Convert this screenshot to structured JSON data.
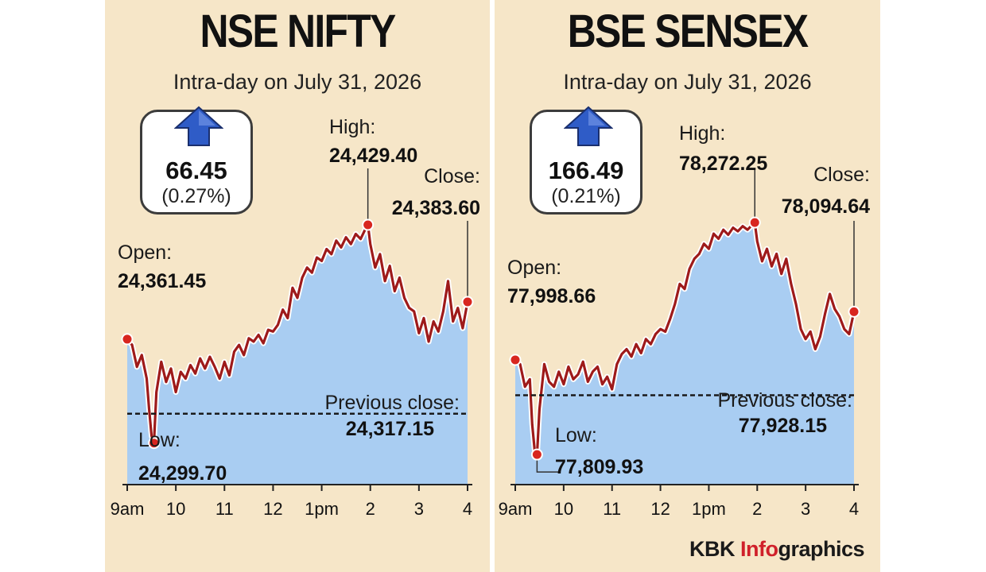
{
  "colors": {
    "panel_bg": "#f6e6c8",
    "area_fill": "#a9cdf2",
    "line": "#9e1a1a",
    "marker": "#d8261f",
    "arrow": "#2f5cc7",
    "accent": "#d0202a"
  },
  "credit": {
    "brand": "KBK ",
    "accent": "Info",
    "rest": "graphics"
  },
  "chart_data": [
    {
      "type": "area",
      "title": "NSE NIFTY",
      "subtitle": "Intra-day on July 31, 2026",
      "change": {
        "value": "66.45",
        "percent": "(0.27%)",
        "direction": "up"
      },
      "x_ticks": [
        "9am",
        "10",
        "11",
        "12",
        "1pm",
        "2",
        "3",
        "4"
      ],
      "x_range_hours": [
        9,
        16
      ],
      "y_range": [
        24275,
        24445
      ],
      "previous_close": {
        "label": "Previous close:",
        "value": "24,317.15",
        "y": 24317.15
      },
      "open": {
        "label": "Open:",
        "value": "24,361.45",
        "x": 9.0,
        "y": 24361.45
      },
      "low": {
        "label": "Low:",
        "value": "24,299.70",
        "x": 9.55,
        "y": 24299.7
      },
      "high": {
        "label": "High:",
        "value": "24,429.40",
        "x": 13.95,
        "y": 24429.4
      },
      "close": {
        "label": "Close:",
        "value": "24,383.60",
        "x": 16.0,
        "y": 24383.6
      },
      "series": [
        {
          "x": [
            9.0,
            9.1,
            9.2,
            9.3,
            9.4,
            9.45,
            9.5,
            9.55,
            9.6,
            9.7,
            9.8,
            9.9,
            10.0,
            10.1,
            10.2,
            10.3,
            10.4,
            10.5,
            10.6,
            10.7,
            10.8,
            10.9,
            11.0,
            11.1,
            11.2,
            11.3,
            11.4,
            11.5,
            11.6,
            11.7,
            11.8,
            11.9,
            12.0,
            12.1,
            12.2,
            12.3,
            12.4,
            12.5,
            12.6,
            12.7,
            12.8,
            12.9,
            13.0,
            13.1,
            13.2,
            13.3,
            13.4,
            13.5,
            13.6,
            13.7,
            13.8,
            13.9,
            13.95,
            14.0,
            14.1,
            14.2,
            14.3,
            14.4,
            14.5,
            14.6,
            14.7,
            14.8,
            14.9,
            15.0,
            15.1,
            15.2,
            15.3,
            15.4,
            15.5,
            15.6,
            15.7,
            15.8,
            15.9,
            16.0
          ],
          "values": [
            24361.45,
            24358,
            24345,
            24352,
            24338,
            24320,
            24304,
            24299.7,
            24330,
            24348,
            24336,
            24344,
            24330,
            24342,
            24338,
            24346,
            24341,
            24350,
            24344,
            24351,
            24345,
            24338,
            24348,
            24340,
            24354,
            24358,
            24352,
            24362,
            24360,
            24364,
            24359,
            24367,
            24366,
            24370,
            24379,
            24374,
            24392,
            24386,
            24398,
            24404,
            24401,
            24410,
            24408,
            24415,
            24412,
            24420,
            24416,
            24422,
            24418,
            24424,
            24421,
            24427,
            24429.4,
            24418,
            24404,
            24412,
            24396,
            24405,
            24390,
            24398,
            24386,
            24380,
            24378,
            24365,
            24374,
            24360,
            24372,
            24366,
            24378,
            24396,
            24372,
            24380,
            24368,
            24383.6
          ]
        }
      ]
    },
    {
      "type": "area",
      "title": "BSE SENSEX",
      "subtitle": "Intra-day on July 31, 2026",
      "change": {
        "value": "166.49",
        "percent": "(0.21%)",
        "direction": "up"
      },
      "x_ticks": [
        "9am",
        "10",
        "11",
        "12",
        "1pm",
        "2",
        "3",
        "4"
      ],
      "x_range_hours": [
        9,
        16
      ],
      "y_range": [
        77750,
        78320
      ],
      "previous_close": {
        "label": "Previous close:",
        "value": "77,928.15",
        "y": 77928.15
      },
      "open": {
        "label": "Open:",
        "value": "77,998.66",
        "x": 9.0,
        "y": 77998.66
      },
      "low": {
        "label": "Low:",
        "value": "77,809.93",
        "x": 9.45,
        "y": 77809.93
      },
      "high": {
        "label": "High:",
        "value": "78,272.25",
        "x": 13.95,
        "y": 78272.25
      },
      "close": {
        "label": "Close:",
        "value": "78,094.64",
        "x": 16.0,
        "y": 78094.64
      },
      "series": [
        {
          "x": [
            9.0,
            9.1,
            9.2,
            9.3,
            9.35,
            9.4,
            9.45,
            9.5,
            9.6,
            9.7,
            9.8,
            9.9,
            10.0,
            10.1,
            10.2,
            10.3,
            10.4,
            10.5,
            10.6,
            10.7,
            10.8,
            10.9,
            11.0,
            11.1,
            11.2,
            11.3,
            11.4,
            11.5,
            11.6,
            11.7,
            11.8,
            11.9,
            12.0,
            12.1,
            12.2,
            12.3,
            12.4,
            12.5,
            12.6,
            12.7,
            12.8,
            12.9,
            13.0,
            13.1,
            13.2,
            13.3,
            13.4,
            13.5,
            13.6,
            13.7,
            13.8,
            13.9,
            13.95,
            14.0,
            14.1,
            14.2,
            14.3,
            14.4,
            14.5,
            14.6,
            14.7,
            14.8,
            14.9,
            15.0,
            15.1,
            15.2,
            15.3,
            15.4,
            15.5,
            15.6,
            15.7,
            15.8,
            15.9,
            16.0
          ],
          "values": [
            77998.66,
            77990,
            77945,
            77960,
            77870,
            77820,
            77809.93,
            77900,
            77990,
            77955,
            77945,
            77975,
            77950,
            77985,
            77960,
            77970,
            77995,
            77955,
            77975,
            77985,
            77950,
            77965,
            77940,
            77990,
            78010,
            78020,
            78005,
            78030,
            78012,
            78040,
            78030,
            78050,
            78060,
            78055,
            78080,
            78110,
            78150,
            78140,
            78180,
            78200,
            78210,
            78230,
            78220,
            78250,
            78240,
            78258,
            78248,
            78262,
            78255,
            78265,
            78258,
            78268,
            78272.25,
            78235,
            78195,
            78220,
            78185,
            78210,
            78170,
            78200,
            78150,
            78110,
            78060,
            78040,
            78055,
            78020,
            78045,
            78090,
            78130,
            78100,
            78085,
            78060,
            78050,
            78094.64
          ]
        }
      ]
    }
  ]
}
